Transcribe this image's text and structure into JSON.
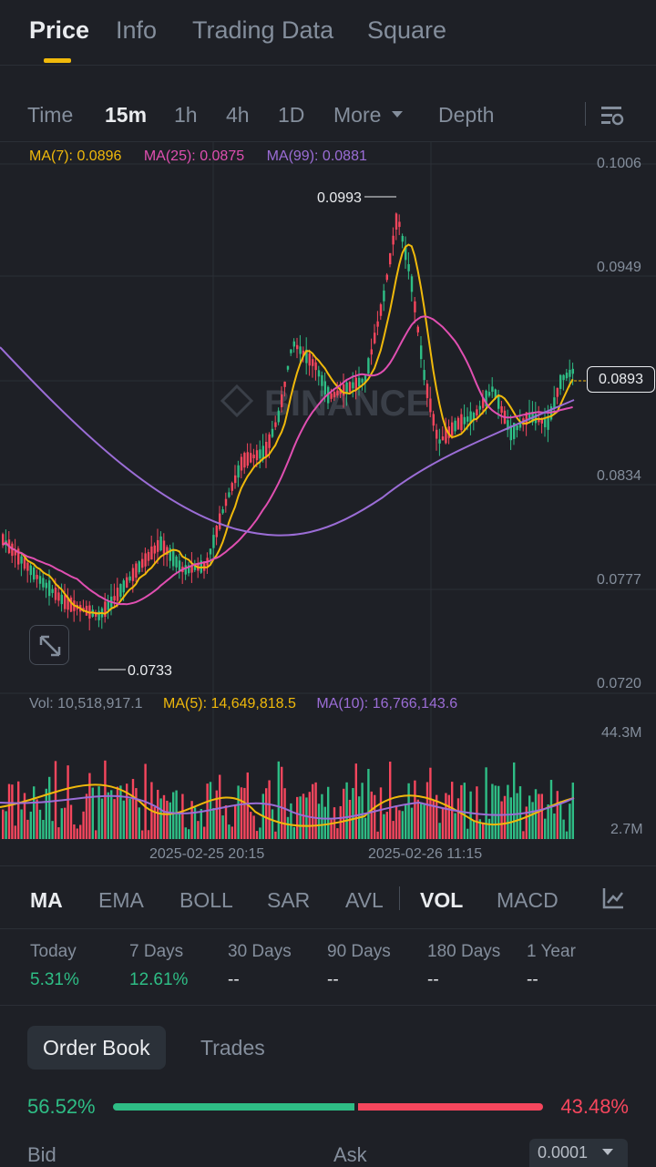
{
  "top_tabs": {
    "price": "Price",
    "info": "Info",
    "trading_data": "Trading Data",
    "square": "Square"
  },
  "intervals": {
    "time": "Time",
    "m15": "15m",
    "h1": "1h",
    "h4": "4h",
    "d1": "1D",
    "more": "More",
    "depth": "Depth"
  },
  "ma_legend": {
    "ma7": "MA(7): 0.0896",
    "ma25": "MA(25): 0.0875",
    "ma99": "MA(99): 0.0881"
  },
  "price_axis": [
    "0.1006",
    "0.0949",
    "0.0834",
    "0.0777",
    "0.0720"
  ],
  "current_price": "0.0893",
  "high_label": "0.0993",
  "low_label": "0.0733",
  "watermark": "BINANCE",
  "vol_legend": {
    "vol": "Vol: 10,518,917.1",
    "ma5": "MA(5): 14,649,818.5",
    "ma10": "MA(10): 16,766,143.6"
  },
  "vol_axis": {
    "max": "44.3M",
    "min": "2.7M"
  },
  "time_axis": [
    "2025-02-25 20:15",
    "2025-02-26 11:15"
  ],
  "indicators": {
    "ma": "MA",
    "ema": "EMA",
    "boll": "BOLL",
    "sar": "SAR",
    "avl": "AVL",
    "vol": "VOL",
    "macd": "MACD"
  },
  "performance": [
    {
      "label": "Today",
      "value": "5.31%"
    },
    {
      "label": "7 Days",
      "value": "12.61%"
    },
    {
      "label": "30 Days",
      "value": "--"
    },
    {
      "label": "90 Days",
      "value": "--"
    },
    {
      "label": "180 Days",
      "value": "--"
    },
    {
      "label": "1 Year",
      "value": "--"
    }
  ],
  "order_book": {
    "tab_order_book": "Order Book",
    "tab_trades": "Trades",
    "bid_ratio": "56.52%",
    "ask_ratio": "43.48%",
    "bid_fraction": 0.5652,
    "bid_header": "Bid",
    "ask_header": "Ask",
    "precision": "0.0001"
  },
  "colors": {
    "up": "#2ebd85",
    "down": "#f6465d",
    "ma7": "#f0b90b",
    "ma25": "#e04fb1",
    "ma99": "#9b6dd6",
    "accent": "#f0b90b"
  },
  "icons": {
    "more_caret": "caret-down-icon",
    "chart_settings": "chart-settings-icon",
    "expand": "expand-icon",
    "indicator_settings": "indicator-settings-icon",
    "precision_caret": "caret-down-icon"
  }
}
